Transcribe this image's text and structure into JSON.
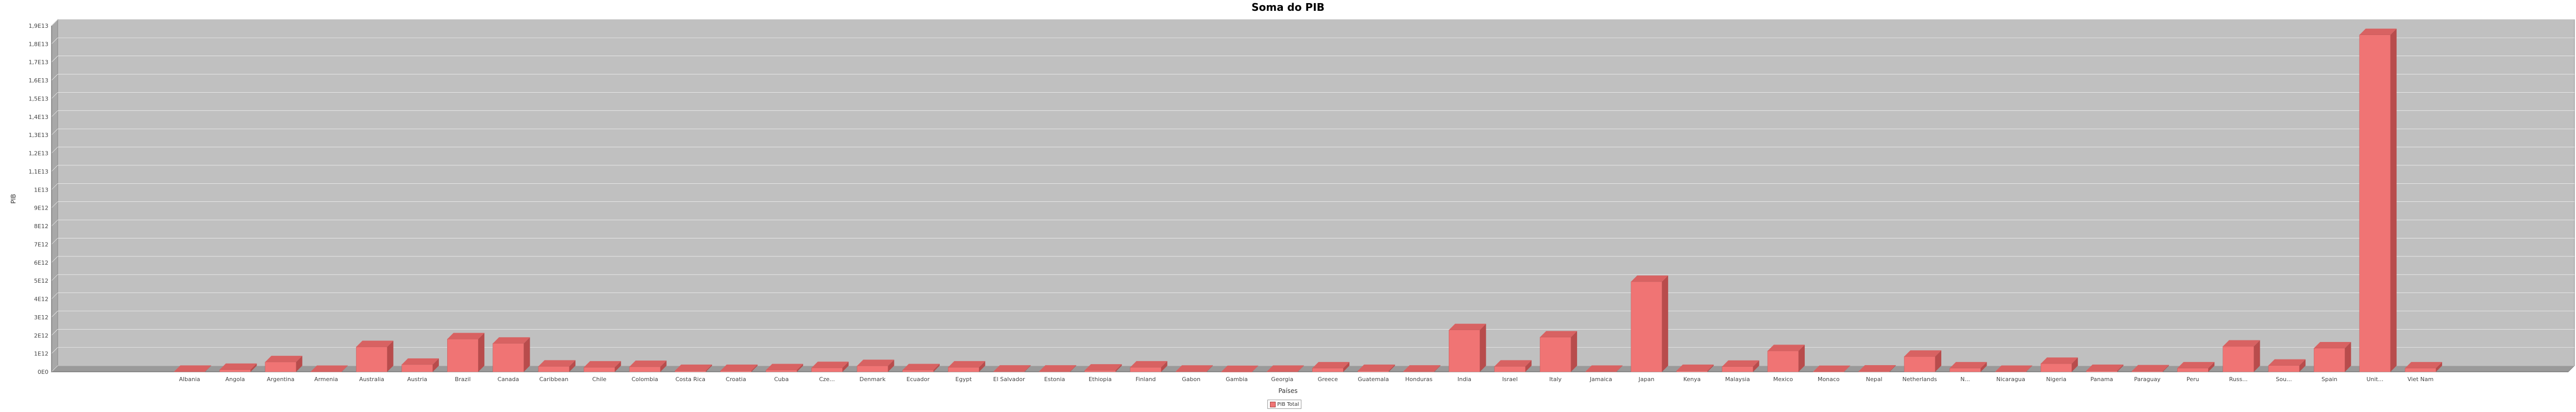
{
  "chart_data": {
    "type": "bar",
    "title": "Soma do PIB",
    "xlabel": "Países",
    "ylabel": "PIB",
    "ylim": [
      0,
      19000000000000
    ],
    "yticks": [
      {
        "value": 0,
        "label": "0E0"
      },
      {
        "value": 1000000000000,
        "label": "1E12"
      },
      {
        "value": 2000000000000,
        "label": "2E12"
      },
      {
        "value": 3000000000000,
        "label": "3E12"
      },
      {
        "value": 4000000000000,
        "label": "4E12"
      },
      {
        "value": 5000000000000,
        "label": "5E12"
      },
      {
        "value": 6000000000000,
        "label": "6E12"
      },
      {
        "value": 7000000000000,
        "label": "7E12"
      },
      {
        "value": 8000000000000,
        "label": "8E12"
      },
      {
        "value": 9000000000000,
        "label": "9E12"
      },
      {
        "value": 10000000000000,
        "label": "1E13"
      },
      {
        "value": 11000000000000,
        "label": "1,1E13"
      },
      {
        "value": 12000000000000,
        "label": "1,2E13"
      },
      {
        "value": 13000000000000,
        "label": "1,3E13"
      },
      {
        "value": 14000000000000,
        "label": "1,4E13"
      },
      {
        "value": 15000000000000,
        "label": "1,5E13"
      },
      {
        "value": 16000000000000,
        "label": "1,6E13"
      },
      {
        "value": 17000000000000,
        "label": "1,7E13"
      },
      {
        "value": 18000000000000,
        "label": "1,8E13"
      },
      {
        "value": 19000000000000,
        "label": "1,9E13"
      }
    ],
    "grid": true,
    "legend_position": "bottom",
    "colors": {
      "bar_front": "#f07474",
      "bar_side": "#b84c4c",
      "bar_top": "#d86262",
      "plot_bg": "#c0c0c0",
      "plot_wall": "#a8a8a8"
    },
    "categories": [
      "Albania",
      "Angola",
      "Argentina",
      "Armenia",
      "Australia",
      "Austria",
      "Brazil",
      "Canada",
      "Caribbean",
      "Chile",
      "Colombia",
      "Costa Rica",
      "Croatia",
      "Cuba",
      "Cze...",
      "Denmark",
      "Ecuador",
      "Egypt",
      "El Salvador",
      "Estonia",
      "Ethiopia",
      "Finland",
      "Gabon",
      "Gambia",
      "Georgia",
      "Greece",
      "Guatemala",
      "Honduras",
      "India",
      "Israel",
      "Italy",
      "Jamaica",
      "Japan",
      "Kenya",
      "Malaysia",
      "Mexico",
      "Monaco",
      "Nepal",
      "Netherlands",
      "N...",
      "Nicaragua",
      "Nigeria",
      "Panama",
      "Paraguay",
      "Peru",
      "Russ...",
      "Sou...",
      "Spain",
      "Unit...",
      "Viet Nam"
    ],
    "series": [
      {
        "name": "PIB Total",
        "values": [
          15000000000,
          120000000000,
          540000000000,
          12000000000,
          1370000000000,
          400000000000,
          1800000000000,
          1560000000000,
          300000000000,
          250000000000,
          280000000000,
          60000000000,
          60000000000,
          100000000000,
          220000000000,
          330000000000,
          100000000000,
          250000000000,
          25000000000,
          25000000000,
          80000000000,
          250000000000,
          20000000000,
          2000000000,
          15000000000,
          200000000000,
          60000000000,
          25000000000,
          2300000000000,
          300000000000,
          1900000000000,
          15000000000,
          4950000000000,
          60000000000,
          290000000000,
          1150000000000,
          8000000000,
          30000000000,
          840000000000,
          200000000000,
          12000000000,
          450000000000,
          60000000000,
          40000000000,
          200000000000,
          1400000000000,
          350000000000,
          1300000000000,
          18500000000000,
          200000000000
        ]
      }
    ]
  }
}
